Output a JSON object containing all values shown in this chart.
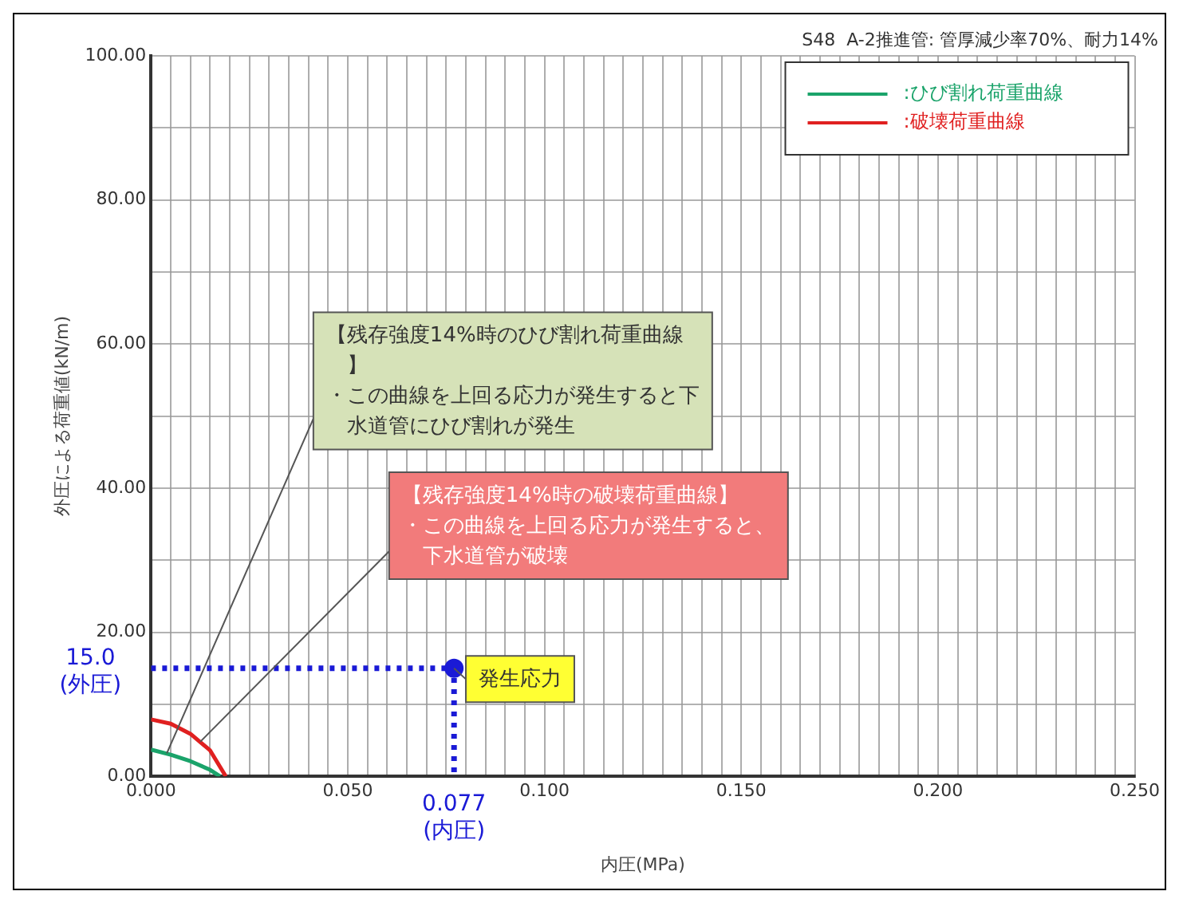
{
  "chart_data": {
    "type": "line",
    "title": "S48  A-2推進管: 管厚減少率70%、耐力14%",
    "xlabel": "内圧(MPa)",
    "ylabel": "外圧による荷重値(kN/m)",
    "xlim": [
      0,
      0.25
    ],
    "ylim": [
      0,
      100
    ],
    "xticks": [
      {
        "value": 0,
        "label": "0.000"
      },
      {
        "value": 0.005,
        "label": null
      },
      {
        "value": 0.01,
        "label": null
      },
      {
        "value": 0.015,
        "label": null
      },
      {
        "value": 0.02,
        "label": null
      },
      {
        "value": 0.025,
        "label": null
      },
      {
        "value": 0.03,
        "label": null
      },
      {
        "value": 0.035,
        "label": null
      },
      {
        "value": 0.04,
        "label": null
      },
      {
        "value": 0.045,
        "label": null
      },
      {
        "value": 0.05,
        "label": "0.050"
      },
      {
        "value": 0.055,
        "label": null
      },
      {
        "value": 0.06,
        "label": null
      },
      {
        "value": 0.065,
        "label": null
      },
      {
        "value": 0.07,
        "label": null
      },
      {
        "value": 0.075,
        "label": null
      },
      {
        "value": 0.08,
        "label": null
      },
      {
        "value": 0.085,
        "label": null
      },
      {
        "value": 0.09,
        "label": null
      },
      {
        "value": 0.095,
        "label": null
      },
      {
        "value": 0.1,
        "label": "0.100"
      },
      {
        "value": 0.105,
        "label": null
      },
      {
        "value": 0.11,
        "label": null
      },
      {
        "value": 0.115,
        "label": null
      },
      {
        "value": 0.12,
        "label": null
      },
      {
        "value": 0.125,
        "label": null
      },
      {
        "value": 0.13,
        "label": null
      },
      {
        "value": 0.135,
        "label": null
      },
      {
        "value": 0.14,
        "label": null
      },
      {
        "value": 0.145,
        "label": null
      },
      {
        "value": 0.15,
        "label": "0.150"
      },
      {
        "value": 0.155,
        "label": null
      },
      {
        "value": 0.16,
        "label": null
      },
      {
        "value": 0.165,
        "label": null
      },
      {
        "value": 0.17,
        "label": null
      },
      {
        "value": 0.175,
        "label": null
      },
      {
        "value": 0.18,
        "label": null
      },
      {
        "value": 0.185,
        "label": null
      },
      {
        "value": 0.19,
        "label": null
      },
      {
        "value": 0.195,
        "label": null
      },
      {
        "value": 0.2,
        "label": "0.200"
      },
      {
        "value": 0.205,
        "label": null
      },
      {
        "value": 0.21,
        "label": null
      },
      {
        "value": 0.215,
        "label": null
      },
      {
        "value": 0.22,
        "label": null
      },
      {
        "value": 0.225,
        "label": null
      },
      {
        "value": 0.23,
        "label": null
      },
      {
        "value": 0.235,
        "label": null
      },
      {
        "value": 0.24,
        "label": null
      },
      {
        "value": 0.245,
        "label": null
      },
      {
        "value": 0.25,
        "label": "0.250"
      }
    ],
    "yticks": [
      {
        "value": 0,
        "label": "0.00"
      },
      {
        "value": 10,
        "label": null
      },
      {
        "value": 20,
        "label": "20.00"
      },
      {
        "value": 30,
        "label": null
      },
      {
        "value": 40,
        "label": "40.00"
      },
      {
        "value": 50,
        "label": null
      },
      {
        "value": 60,
        "label": "60.00"
      },
      {
        "value": 70,
        "label": null
      },
      {
        "value": 80,
        "label": "80.00"
      },
      {
        "value": 90,
        "label": null
      },
      {
        "value": 100,
        "label": "100.00"
      }
    ],
    "grid": true,
    "legend": "top right",
    "series": [
      {
        "name": ":ひび割れ荷重曲線",
        "color": "#1aa36a",
        "x": [
          0,
          0.005,
          0.01,
          0.015,
          0.0175
        ],
        "values": [
          3.7,
          3.0,
          2.1,
          0.9,
          0
        ],
        "marker": "none"
      },
      {
        "name": ":破壊荷重曲線",
        "color": "#e02020",
        "x": [
          0,
          0.005,
          0.01,
          0.015,
          0.019
        ],
        "values": [
          7.9,
          7.3,
          5.9,
          3.6,
          0
        ],
        "marker": "none"
      },
      {
        "type": "line",
        "color": "#1a1ad6",
        "x": [
          0,
          0.077,
          0.077
        ],
        "values": [
          15,
          15,
          0
        ],
        "line_style": "dotted",
        "marker": "none"
      },
      {
        "type": "scatter",
        "color": "#1a1ad6",
        "x": [
          0.077
        ],
        "values": [
          15
        ],
        "marker": "circle"
      }
    ],
    "annotations": [
      {
        "text": "15.0\n(外圧)",
        "x": 0,
        "y": 15
      },
      {
        "text": "0.077\n(内圧)",
        "x": 0.077,
        "y": 0
      },
      {
        "text": "発生応力",
        "x": 0.077,
        "y": 15
      },
      {
        "text": "【残存強度14%時のひび割れ荷重曲線】・この曲線を上回る応力が発生すると下水道管にひび割れが発生",
        "x": 0.004,
        "y": 3.2
      },
      {
        "text": "【残存強度14%時の破壊荷重曲線】・この曲線を上回る応力が発生すると、下水道管が破壊",
        "x": 0.0125,
        "y": 4.8
      }
    ]
  }
}
